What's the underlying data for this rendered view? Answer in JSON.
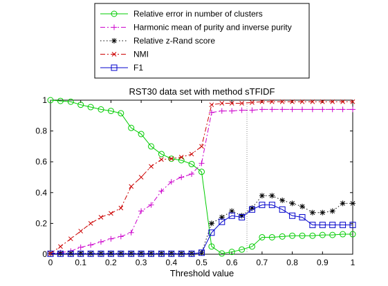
{
  "chart_data": {
    "type": "line",
    "title": "RST30 data set with method sTFIDF",
    "xlabel": "Threshold value",
    "ylabel": "",
    "xlim": [
      0,
      1
    ],
    "ylim": [
      0,
      1
    ],
    "xticks": [
      "0",
      "0.1",
      "0.2",
      "0.3",
      "0.4",
      "0.5",
      "0.6",
      "0.7",
      "0.8",
      "0.9",
      "1"
    ],
    "yticks": [
      "0",
      "0.2",
      "0.4",
      "0.6",
      "0.8",
      "1"
    ],
    "grid": false,
    "legend_position": "top-center, above plot",
    "vertical_marker_x": 0.65,
    "x": [
      0,
      0.033,
      0.067,
      0.1,
      0.133,
      0.167,
      0.2,
      0.233,
      0.267,
      0.3,
      0.333,
      0.367,
      0.4,
      0.433,
      0.467,
      0.5,
      0.533,
      0.567,
      0.6,
      0.633,
      0.667,
      0.7,
      0.733,
      0.767,
      0.8,
      0.833,
      0.867,
      0.9,
      0.933,
      0.967,
      1
    ],
    "series": [
      {
        "name": "Relative error in number of clusters",
        "color": "#00cc00",
        "marker": "circle",
        "line": "solid",
        "values": [
          1.0,
          0.995,
          0.99,
          0.97,
          0.955,
          0.94,
          0.93,
          0.915,
          0.82,
          0.78,
          0.7,
          0.65,
          0.62,
          0.61,
          0.585,
          0.535,
          0.05,
          0.005,
          0.015,
          0.03,
          0.05,
          0.11,
          0.11,
          0.115,
          0.12,
          0.12,
          0.12,
          0.125,
          0.125,
          0.13,
          0.13
        ]
      },
      {
        "name": "Harmonic mean of purity and inverse purity",
        "color": "#cc00cc",
        "marker": "plus",
        "line": "dashdot",
        "values": [
          0.005,
          0.01,
          0.02,
          0.045,
          0.06,
          0.08,
          0.1,
          0.115,
          0.14,
          0.28,
          0.32,
          0.41,
          0.47,
          0.5,
          0.52,
          0.59,
          0.92,
          0.93,
          0.93,
          0.935,
          0.935,
          0.94,
          0.94,
          0.94,
          0.94,
          0.94,
          0.94,
          0.94,
          0.94,
          0.94,
          0.94
        ]
      },
      {
        "name": "Relative z-Rand score",
        "color": "#000000",
        "marker": "star",
        "line": "dotted",
        "values": [
          0.005,
          0.005,
          0.005,
          0.005,
          0.005,
          0.005,
          0.005,
          0.005,
          0.005,
          0.005,
          0.005,
          0.005,
          0.005,
          0.005,
          0.005,
          0.01,
          0.2,
          0.24,
          0.28,
          0.25,
          0.3,
          0.38,
          0.38,
          0.35,
          0.33,
          0.31,
          0.27,
          0.27,
          0.28,
          0.33,
          0.33
        ]
      },
      {
        "name": "NMI",
        "color": "#cc0000",
        "marker": "x",
        "line": "dashdot",
        "values": [
          0.005,
          0.05,
          0.1,
          0.15,
          0.2,
          0.24,
          0.265,
          0.3,
          0.44,
          0.5,
          0.57,
          0.615,
          0.62,
          0.63,
          0.65,
          0.7,
          0.97,
          0.98,
          0.98,
          0.98,
          0.985,
          0.99,
          0.99,
          0.99,
          0.99,
          0.99,
          0.99,
          0.99,
          0.99,
          0.99,
          0.99
        ]
      },
      {
        "name": "F1",
        "color": "#0000cc",
        "marker": "square",
        "line": "solid",
        "values": [
          0.003,
          0.003,
          0.003,
          0.003,
          0.003,
          0.003,
          0.003,
          0.003,
          0.003,
          0.003,
          0.003,
          0.003,
          0.003,
          0.003,
          0.003,
          0.01,
          0.14,
          0.21,
          0.25,
          0.24,
          0.29,
          0.32,
          0.32,
          0.29,
          0.25,
          0.24,
          0.19,
          0.19,
          0.19,
          0.19,
          0.19
        ]
      }
    ]
  }
}
